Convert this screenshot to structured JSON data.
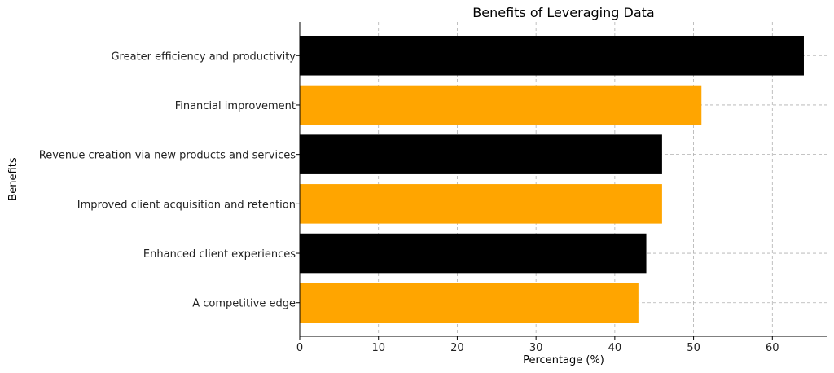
{
  "chart_data": {
    "type": "bar",
    "orientation": "horizontal",
    "title": "Benefits of Leveraging Data",
    "xlabel": "Percentage (%)",
    "ylabel": "Benefits",
    "categories": [
      "A competitive edge",
      "Enhanced client experiences",
      "Improved client acquisition and retention",
      "Revenue creation via new products and services",
      "Financial improvement",
      "Greater efficiency and productivity"
    ],
    "values": [
      43,
      44,
      46,
      46,
      51,
      64
    ],
    "bar_colors": [
      "#FFA500",
      "#000000",
      "#FFA500",
      "#000000",
      "#FFA500",
      "#000000"
    ],
    "xlim": [
      0,
      67
    ],
    "xticks": [
      0,
      10,
      20,
      30,
      40,
      50,
      60
    ],
    "grid": true
  }
}
